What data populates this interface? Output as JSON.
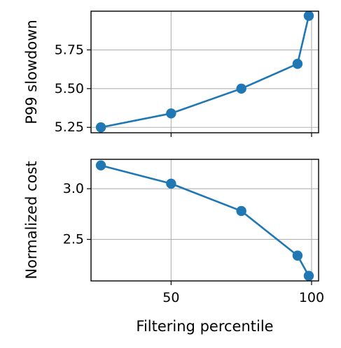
{
  "chart_data": [
    {
      "type": "line",
      "name": "top",
      "x": [
        25,
        50,
        75,
        95,
        99
      ],
      "y": [
        5.25,
        5.34,
        5.5,
        5.66,
        5.97
      ],
      "xlabel": "",
      "ylabel": "P99 slowdown",
      "xlim": [
        21.5,
        102.5
      ],
      "ylim": [
        5.215,
        6.0
      ],
      "xticks": [
        50,
        100
      ],
      "yticks": [
        5.25,
        5.5,
        5.75
      ],
      "ytick_labels": [
        "5.25",
        "5.50",
        "5.75"
      ],
      "xtick_labels": [],
      "grid": true,
      "color": "#1f77b4"
    },
    {
      "type": "line",
      "name": "bottom",
      "x": [
        25,
        50,
        75,
        95,
        99
      ],
      "y": [
        3.23,
        3.05,
        2.78,
        2.34,
        2.14
      ],
      "xlabel": "Filtering percentile",
      "ylabel": "Normalized cost",
      "xlim": [
        21.5,
        102.5
      ],
      "ylim": [
        2.09,
        3.29
      ],
      "xticks": [
        50,
        100
      ],
      "yticks": [
        2.5,
        3.0
      ],
      "ytick_labels": [
        "2.5",
        "3.0"
      ],
      "xtick_labels": [
        "50",
        "100"
      ],
      "grid": true,
      "color": "#1f77b4"
    }
  ]
}
